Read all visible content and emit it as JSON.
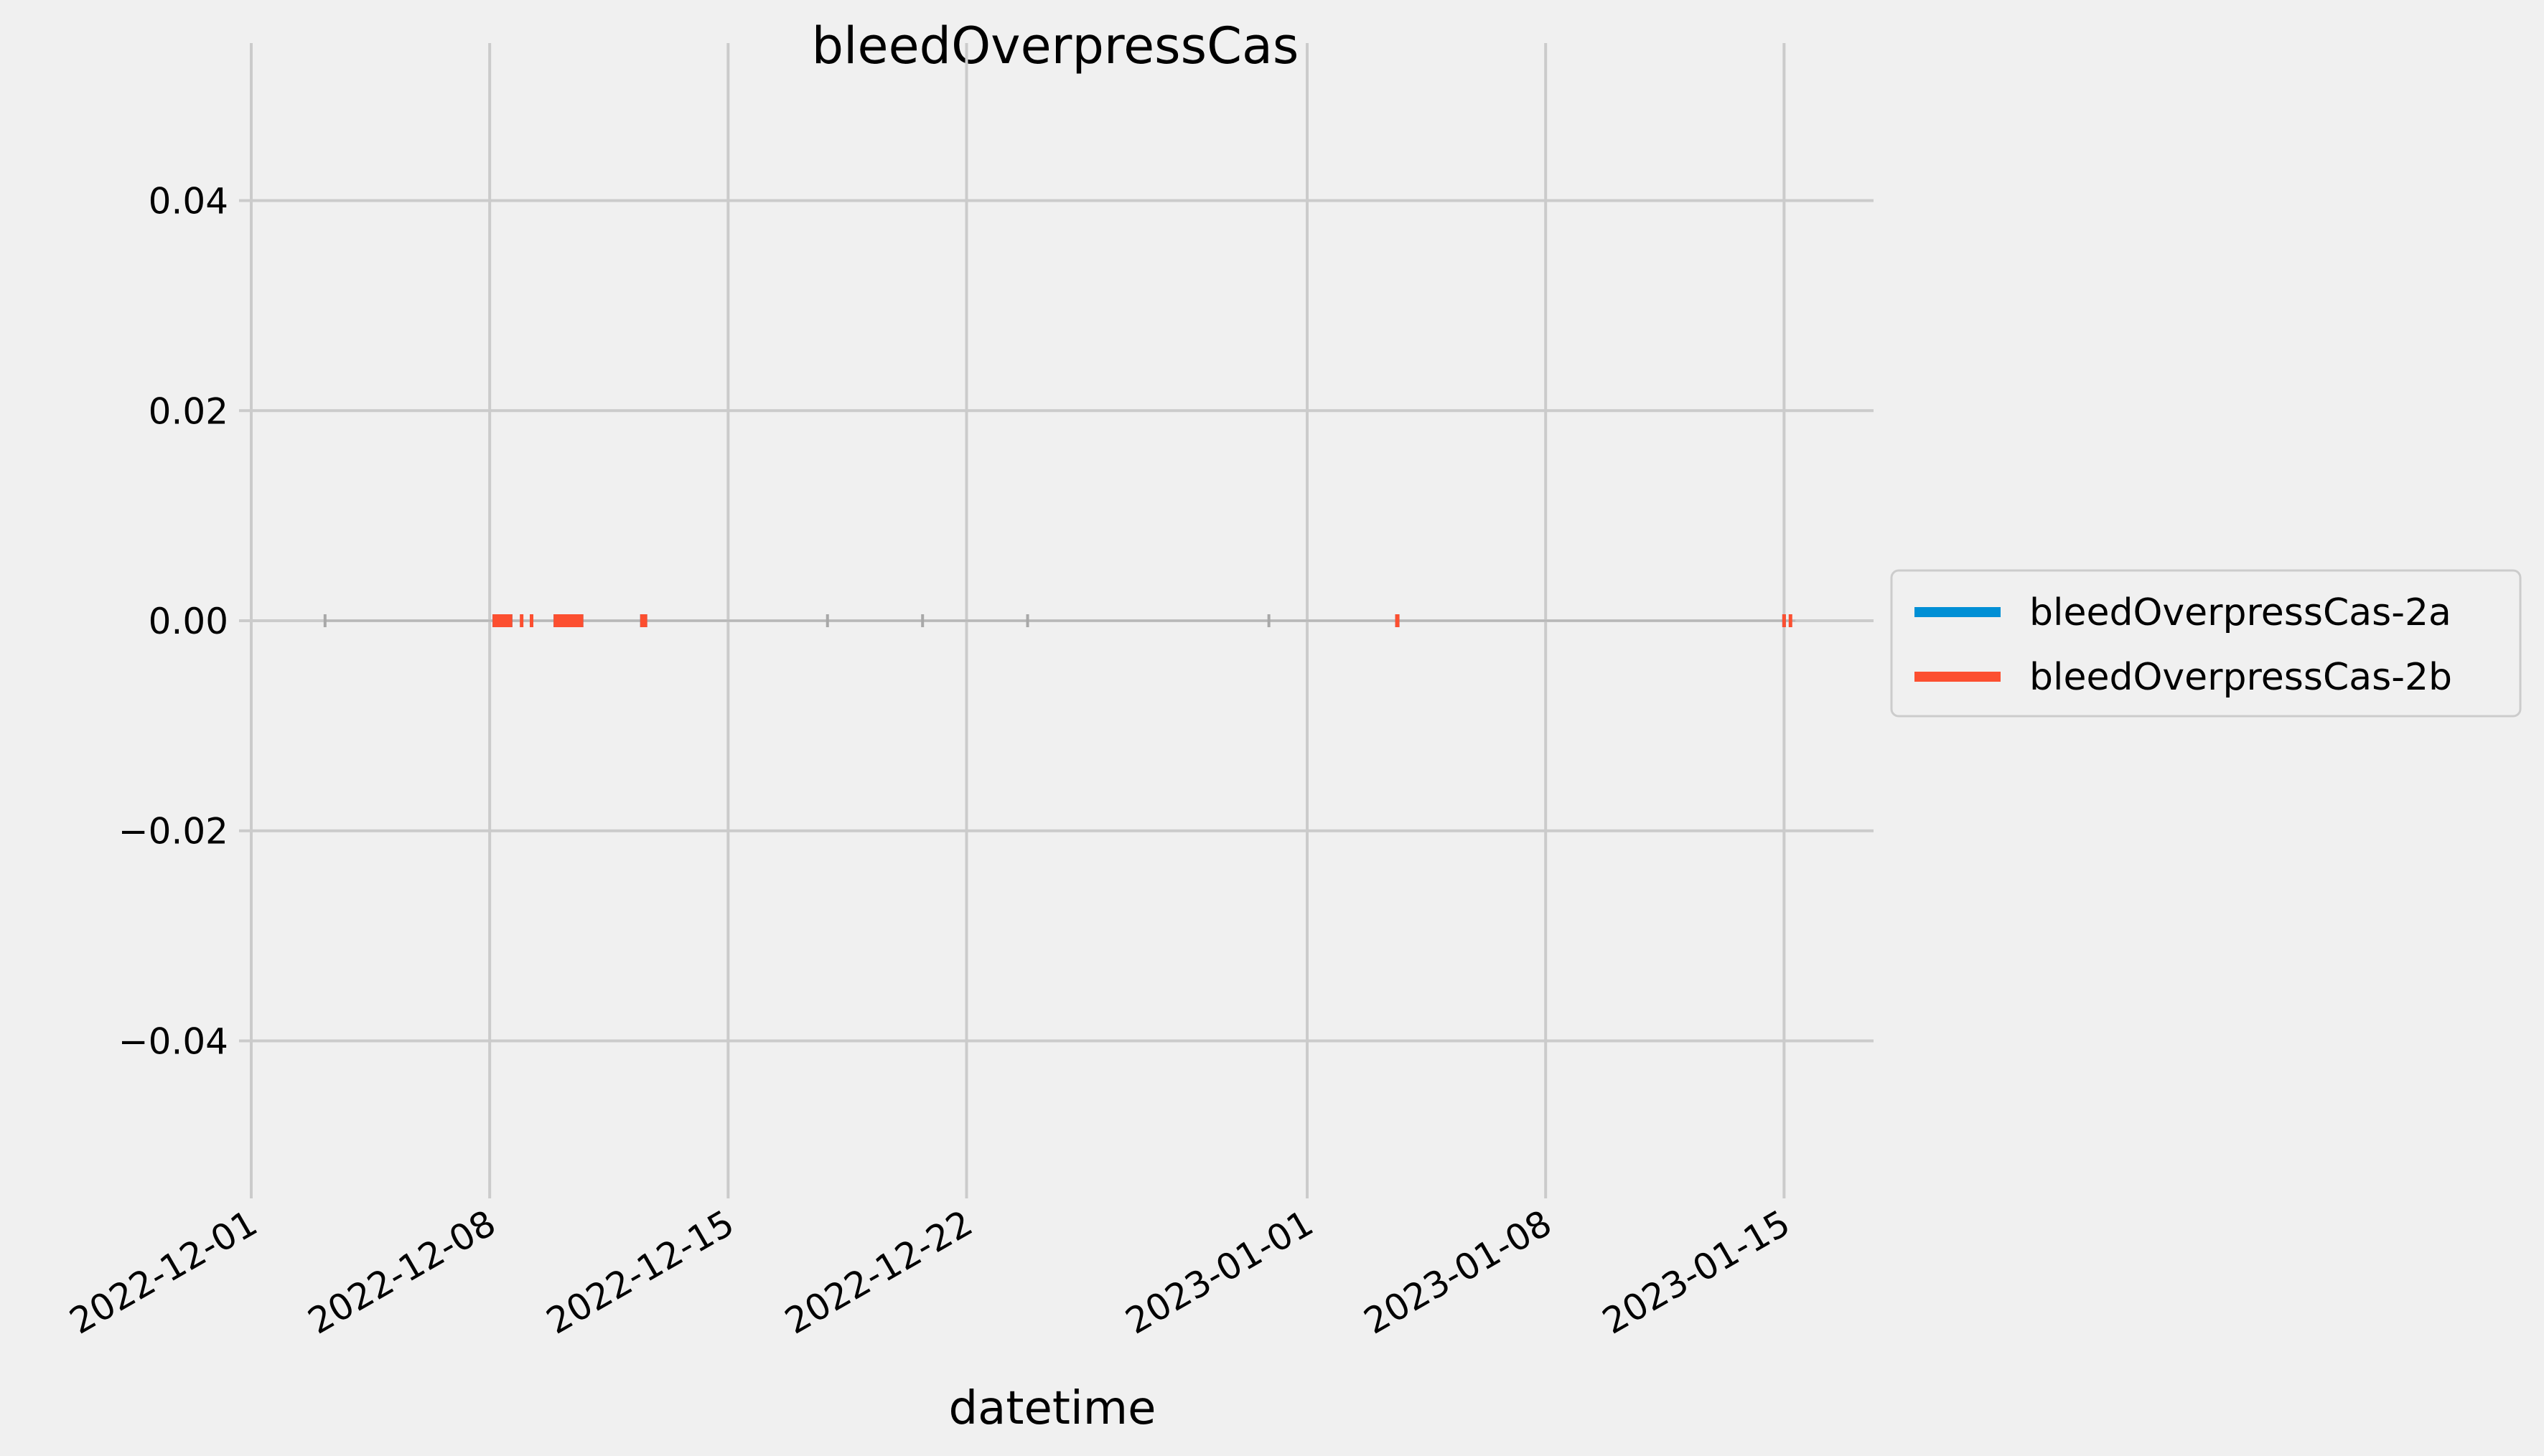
{
  "chart_data": {
    "type": "line",
    "title": "bleedOverpressCas",
    "xlabel": "datetime",
    "ylabel": "",
    "xlim": [
      "2022-12-01",
      "2023-01-17T12:00"
    ],
    "ylim": [
      -0.055,
      0.055
    ],
    "x_ticks": [
      "2022-12-01",
      "2022-12-08",
      "2022-12-15",
      "2022-12-22",
      "2023-01-01",
      "2023-01-08",
      "2023-01-15"
    ],
    "y_ticks": [
      0.04,
      0.02,
      0.0,
      -0.02,
      -0.04
    ],
    "y_tick_labels": [
      "0.04",
      "0.02",
      "0.00",
      "−0.02",
      "−0.04"
    ],
    "grid": true,
    "legend_position": "right-outside",
    "series": [
      {
        "name": "bleedOverpressCas-2a",
        "color": "#008fd5",
        "segments": [
          {
            "start": "2022-12-08T02:00",
            "end": "2022-12-08T16:00",
            "value": 0
          },
          {
            "start": "2022-12-09T21:00",
            "end": "2022-12-10T18:00",
            "value": 0
          },
          {
            "start": "2022-12-12T10:00",
            "end": "2022-12-12T15:00",
            "value": 0
          },
          {
            "start": "2023-01-03T14:00",
            "end": "2023-01-03T17:00",
            "value": 0
          },
          {
            "start": "2023-01-14T23:00",
            "end": "2023-01-15T01:00",
            "value": 0
          }
        ]
      },
      {
        "name": "bleedOverpressCas-2b",
        "color": "#fc4f30",
        "segments": [
          {
            "start": "2022-12-08T02:00",
            "end": "2022-12-08T16:00",
            "value": 0
          },
          {
            "start": "2022-12-08T22:00",
            "end": "2022-12-08T23:00",
            "value": 0
          },
          {
            "start": "2022-12-09T05:00",
            "end": "2022-12-09T06:00",
            "value": 0
          },
          {
            "start": "2022-12-09T21:00",
            "end": "2022-12-10T18:00",
            "value": 0
          },
          {
            "start": "2022-12-12T10:00",
            "end": "2022-12-12T15:00",
            "value": 0
          },
          {
            "start": "2023-01-03T14:00",
            "end": "2023-01-03T17:00",
            "value": 0
          },
          {
            "start": "2023-01-14T23:00",
            "end": "2023-01-15T01:00",
            "value": 0
          },
          {
            "start": "2023-01-15T04:00",
            "end": "2023-01-15T05:00",
            "value": 0
          }
        ]
      }
    ]
  }
}
